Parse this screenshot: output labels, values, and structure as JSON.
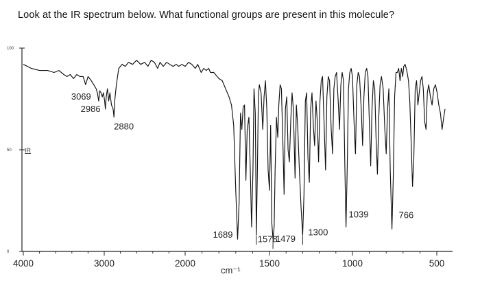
{
  "question": {
    "text": "Look at the IR spectrum below. What functional groups are present in this molecule?"
  },
  "chart_data": {
    "type": "line",
    "title": "",
    "xlabel": "cm⁻¹",
    "ylabel": "",
    "x_reversed": true,
    "xlim": [
      4000,
      450
    ],
    "ylim": [
      0,
      100
    ],
    "x_ticks": [
      4000,
      3000,
      2000,
      1500,
      1000,
      500
    ],
    "y_ticks": [
      {
        "value": 100,
        "label": "100"
      },
      {
        "value": 50,
        "label": "50"
      },
      {
        "value": 0,
        "label": "0"
      }
    ],
    "grid": false,
    "legend": "none",
    "corner_mark": "IR",
    "peak_labels": [
      {
        "text": "3069",
        "x": 3069
      },
      {
        "text": "2986",
        "x": 2986
      },
      {
        "text": "2880",
        "x": 2880
      },
      {
        "text": "1689",
        "x": 1689
      },
      {
        "text": "1578",
        "x": 1578
      },
      {
        "text": "1479",
        "x": 1479
      },
      {
        "text": "1300",
        "x": 1300
      },
      {
        "text": "1039",
        "x": 1039
      },
      {
        "text": "766",
        "x": 766
      }
    ],
    "series": [
      {
        "values": [
          [
            4000,
            92
          ],
          [
            3900,
            90
          ],
          [
            3800,
            89
          ],
          [
            3700,
            89
          ],
          [
            3620,
            88
          ],
          [
            3560,
            89
          ],
          [
            3500,
            87
          ],
          [
            3460,
            86
          ],
          [
            3420,
            87
          ],
          [
            3380,
            85
          ],
          [
            3340,
            87
          ],
          [
            3300,
            86
          ],
          [
            3260,
            86
          ],
          [
            3230,
            82
          ],
          [
            3200,
            86
          ],
          [
            3160,
            84
          ],
          [
            3130,
            82
          ],
          [
            3100,
            80
          ],
          [
            3085,
            78
          ],
          [
            3069,
            74
          ],
          [
            3055,
            79
          ],
          [
            3040,
            78
          ],
          [
            3025,
            76
          ],
          [
            3010,
            78
          ],
          [
            2995,
            74
          ],
          [
            2986,
            70
          ],
          [
            2975,
            76
          ],
          [
            2960,
            80
          ],
          [
            2945,
            74
          ],
          [
            2930,
            78
          ],
          [
            2910,
            72
          ],
          [
            2890,
            70
          ],
          [
            2880,
            66
          ],
          [
            2870,
            74
          ],
          [
            2850,
            82
          ],
          [
            2820,
            90
          ],
          [
            2780,
            92
          ],
          [
            2740,
            91
          ],
          [
            2700,
            93
          ],
          [
            2650,
            92
          ],
          [
            2600,
            94
          ],
          [
            2550,
            92
          ],
          [
            2500,
            93
          ],
          [
            2460,
            91
          ],
          [
            2420,
            94
          ],
          [
            2380,
            93
          ],
          [
            2340,
            90
          ],
          [
            2310,
            93
          ],
          [
            2270,
            91
          ],
          [
            2230,
            93
          ],
          [
            2190,
            92
          ],
          [
            2150,
            91
          ],
          [
            2110,
            92
          ],
          [
            2080,
            91
          ],
          [
            2040,
            92
          ],
          [
            2000,
            91
          ],
          [
            1980,
            93
          ],
          [
            1960,
            92
          ],
          [
            1940,
            90
          ],
          [
            1925,
            92
          ],
          [
            1905,
            88
          ],
          [
            1890,
            90
          ],
          [
            1875,
            89
          ],
          [
            1860,
            90
          ],
          [
            1850,
            88
          ],
          [
            1830,
            88
          ],
          [
            1800,
            85
          ],
          [
            1780,
            84
          ],
          [
            1760,
            80
          ],
          [
            1740,
            76
          ],
          [
            1725,
            72
          ],
          [
            1712,
            62
          ],
          [
            1700,
            30
          ],
          [
            1689,
            6
          ],
          [
            1680,
            24
          ],
          [
            1672,
            68
          ],
          [
            1664,
            60
          ],
          [
            1656,
            71
          ],
          [
            1648,
            72
          ],
          [
            1640,
            35
          ],
          [
            1632,
            60
          ],
          [
            1622,
            66
          ],
          [
            1614,
            40
          ],
          [
            1606,
            12
          ],
          [
            1598,
            40
          ],
          [
            1592,
            80
          ],
          [
            1584,
            68
          ],
          [
            1578,
            8
          ],
          [
            1572,
            38
          ],
          [
            1566,
            76
          ],
          [
            1560,
            82
          ],
          [
            1550,
            78
          ],
          [
            1540,
            60
          ],
          [
            1532,
            76
          ],
          [
            1524,
            84
          ],
          [
            1516,
            70
          ],
          [
            1508,
            40
          ],
          [
            1500,
            30
          ],
          [
            1493,
            62
          ],
          [
            1486,
            14
          ],
          [
            1479,
            6
          ],
          [
            1472,
            12
          ],
          [
            1466,
            40
          ],
          [
            1458,
            66
          ],
          [
            1450,
            56
          ],
          [
            1444,
            72
          ],
          [
            1436,
            82
          ],
          [
            1428,
            80
          ],
          [
            1418,
            50
          ],
          [
            1412,
            28
          ],
          [
            1404,
            70
          ],
          [
            1396,
            76
          ],
          [
            1388,
            50
          ],
          [
            1380,
            44
          ],
          [
            1372,
            64
          ],
          [
            1364,
            78
          ],
          [
            1356,
            70
          ],
          [
            1346,
            36
          ],
          [
            1338,
            72
          ],
          [
            1330,
            62
          ],
          [
            1320,
            40
          ],
          [
            1310,
            22
          ],
          [
            1300,
            8
          ],
          [
            1292,
            28
          ],
          [
            1284,
            74
          ],
          [
            1276,
            78
          ],
          [
            1268,
            46
          ],
          [
            1260,
            34
          ],
          [
            1252,
            70
          ],
          [
            1244,
            78
          ],
          [
            1236,
            62
          ],
          [
            1228,
            52
          ],
          [
            1220,
            74
          ],
          [
            1212,
            64
          ],
          [
            1204,
            44
          ],
          [
            1196,
            74
          ],
          [
            1188,
            84
          ],
          [
            1180,
            86
          ],
          [
            1170,
            60
          ],
          [
            1162,
            40
          ],
          [
            1154,
            76
          ],
          [
            1146,
            86
          ],
          [
            1138,
            84
          ],
          [
            1128,
            60
          ],
          [
            1120,
            48
          ],
          [
            1112,
            80
          ],
          [
            1104,
            86
          ],
          [
            1096,
            88
          ],
          [
            1086,
            74
          ],
          [
            1078,
            60
          ],
          [
            1070,
            82
          ],
          [
            1062,
            88
          ],
          [
            1054,
            84
          ],
          [
            1046,
            42
          ],
          [
            1039,
            12
          ],
          [
            1032,
            40
          ],
          [
            1024,
            80
          ],
          [
            1016,
            88
          ],
          [
            1008,
            90
          ],
          [
            1000,
            86
          ],
          [
            990,
            62
          ],
          [
            982,
            48
          ],
          [
            974,
            82
          ],
          [
            966,
            88
          ],
          [
            958,
            86
          ],
          [
            948,
            70
          ],
          [
            940,
            52
          ],
          [
            932,
            76
          ],
          [
            924,
            88
          ],
          [
            916,
            90
          ],
          [
            908,
            86
          ],
          [
            900,
            64
          ],
          [
            892,
            42
          ],
          [
            884,
            70
          ],
          [
            876,
            84
          ],
          [
            868,
            80
          ],
          [
            860,
            56
          ],
          [
            852,
            38
          ],
          [
            844,
            66
          ],
          [
            836,
            82
          ],
          [
            828,
            86
          ],
          [
            818,
            80
          ],
          [
            808,
            60
          ],
          [
            800,
            48
          ],
          [
            792,
            70
          ],
          [
            784,
            80
          ],
          [
            776,
            40
          ],
          [
            766,
            11
          ],
          [
            758,
            36
          ],
          [
            750,
            76
          ],
          [
            742,
            88
          ],
          [
            734,
            88
          ],
          [
            726,
            90
          ],
          [
            718,
            84
          ],
          [
            710,
            90
          ],
          [
            702,
            86
          ],
          [
            696,
            91
          ],
          [
            688,
            92
          ],
          [
            678,
            89
          ],
          [
            668,
            84
          ],
          [
            660,
            74
          ],
          [
            652,
            54
          ],
          [
            644,
            32
          ],
          [
            636,
            46
          ],
          [
            628,
            80
          ],
          [
            620,
            84
          ],
          [
            612,
            72
          ],
          [
            604,
            78
          ],
          [
            596,
            84
          ],
          [
            588,
            86
          ],
          [
            580,
            80
          ],
          [
            572,
            64
          ],
          [
            564,
            60
          ],
          [
            556,
            78
          ],
          [
            548,
            82
          ],
          [
            538,
            76
          ],
          [
            528,
            72
          ],
          [
            518,
            80
          ],
          [
            508,
            82
          ],
          [
            498,
            78
          ],
          [
            488,
            72
          ],
          [
            478,
            68
          ],
          [
            468,
            60
          ],
          [
            458,
            66
          ],
          [
            450,
            70
          ]
        ]
      }
    ]
  }
}
